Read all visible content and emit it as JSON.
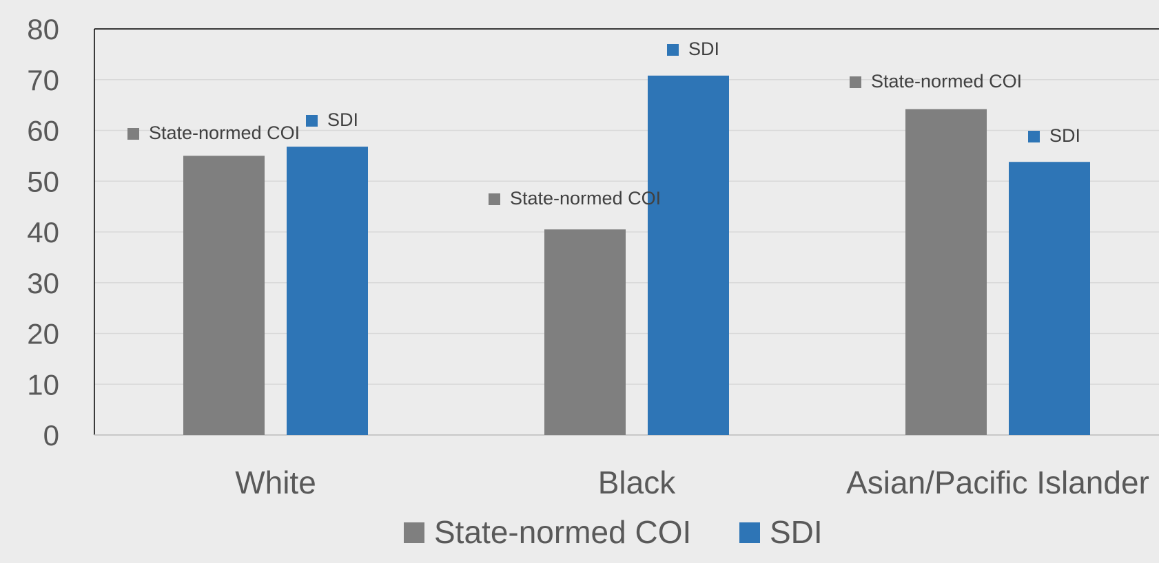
{
  "chart_data": {
    "type": "bar",
    "title": "",
    "xlabel": "",
    "ylabel": "",
    "categories": [
      "White",
      "Black",
      "Asian/Pacific Islander"
    ],
    "series": [
      {
        "name": "State-normed COI",
        "values": [
          55,
          40.5,
          64.2
        ],
        "color": "#7f7f7f"
      },
      {
        "name": "SDI",
        "values": [
          56.8,
          70.8,
          53.8
        ],
        "color": "#2e75b6"
      }
    ],
    "ylim": [
      0,
      80
    ],
    "yticks": [
      "0",
      "10",
      "20",
      "30",
      "40",
      "50",
      "60",
      "70",
      "80"
    ],
    "grid": true,
    "legend": {
      "position": "bottom",
      "items": [
        {
          "label": "State-normed COI",
          "color": "#7f7f7f"
        },
        {
          "label": "SDI",
          "color": "#2e75b6"
        }
      ]
    },
    "data_labels": "series name"
  }
}
